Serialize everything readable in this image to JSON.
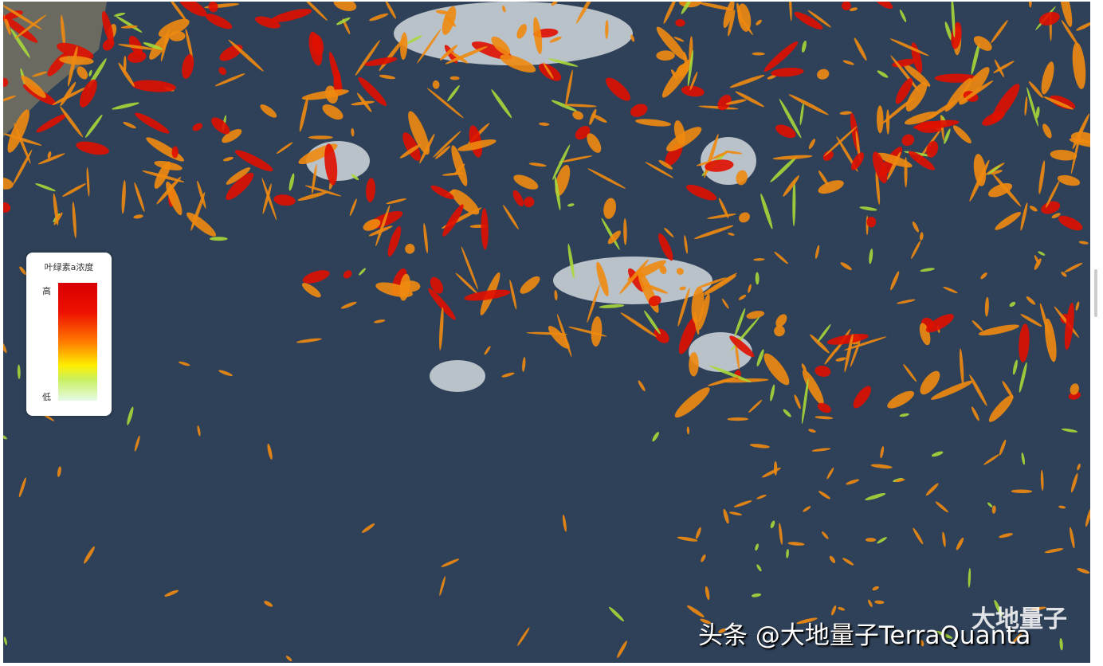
{
  "legend": {
    "title": "叶绿素a浓度",
    "high_label": "高",
    "low_label": "低",
    "gradient_colors": [
      "#d80000",
      "#ff7a00",
      "#ffee00",
      "#c8f060",
      "#e6fbe6"
    ]
  },
  "watermark": {
    "text": "头条 @大地量子TerraQuanta",
    "logo_text": "大地量子"
  },
  "colors": {
    "ocean": "#2f4158",
    "high": "#e01000",
    "mid": "#f08a10",
    "low": "#a8d83a",
    "cloud": "#e8ecef"
  }
}
